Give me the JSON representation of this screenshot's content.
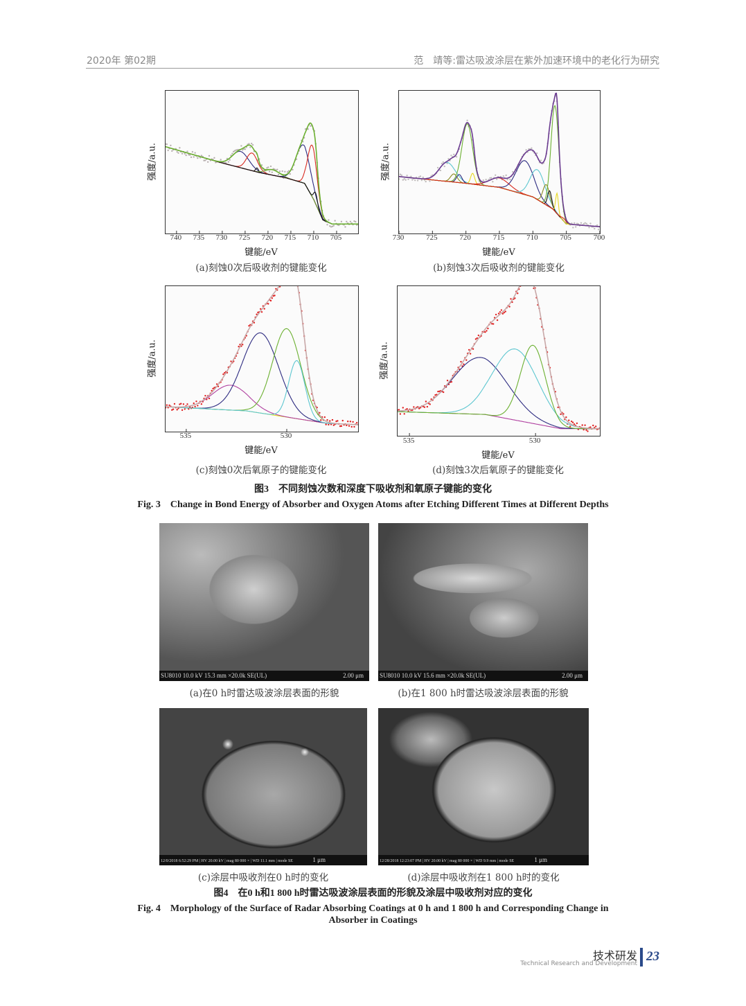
{
  "header": {
    "left": "2020年 第02期",
    "right": "范　靖等:雷达吸波涂层在紫外加速环境中的老化行为研究"
  },
  "chart_data": [
    {
      "type": "line",
      "id": "a",
      "xlabel": "键能/eV",
      "ylabel": "强度/a.u.",
      "caption": "(a)刻蚀0次后吸收剂的键能变化",
      "xlim": [
        742.4,
        700.3
      ],
      "ticks": [
        740,
        735,
        730,
        725,
        720,
        715,
        710,
        705
      ],
      "background": [
        [
          742.4,
          0.64
        ],
        [
          730,
          0.52
        ],
        [
          722,
          0.45
        ],
        [
          716,
          0.41
        ],
        [
          712,
          0.37
        ],
        [
          710,
          0.25
        ],
        [
          708,
          0.1
        ],
        [
          706,
          0.07
        ],
        [
          700.3,
          0.07
        ]
      ],
      "background_color": "#5cc6d0",
      "components": [
        [
          726,
          0.12,
          1.8,
          "#2c2a80"
        ],
        [
          723.5,
          0.13,
          1.2,
          "#d8281e"
        ],
        [
          722.4,
          0.03,
          0.3,
          "#111111"
        ],
        [
          719,
          0.04,
          1.5,
          "#7aa640"
        ],
        [
          712.3,
          0.28,
          1.6,
          "#2c2a80"
        ],
        [
          710.3,
          0.38,
          1.0,
          "#d8281e"
        ],
        [
          709.6,
          0.08,
          0.4,
          "#111111"
        ]
      ],
      "envelope_color": "#6bb030",
      "points_color": "#b8b0b0"
    },
    {
      "type": "line",
      "id": "b",
      "xlabel": "键能/eV",
      "ylabel": "强度/a.u.",
      "caption": "(b)刻蚀3次后吸收剂的键能变化",
      "xlim": [
        730,
        700
      ],
      "ticks": [
        730,
        725,
        720,
        715,
        710,
        705,
        700
      ],
      "background": [
        [
          730,
          0.42
        ],
        [
          720,
          0.37
        ],
        [
          715,
          0.34
        ],
        [
          710,
          0.27
        ],
        [
          707,
          0.18
        ],
        [
          705,
          0.07
        ],
        [
          700,
          0.05
        ]
      ],
      "background_color": "#f07a20",
      "components": [
        [
          722.8,
          0.14,
          1.2,
          "#5cc6d0"
        ],
        [
          721.8,
          0.06,
          0.5,
          "#8a8a20"
        ],
        [
          721,
          0.06,
          0.4,
          "#2c2a80"
        ],
        [
          719.8,
          0.44,
          0.8,
          "#6bb030"
        ],
        [
          719,
          0.08,
          0.3,
          "#e8d820"
        ],
        [
          715,
          0.07,
          1.5,
          "#d8281e"
        ],
        [
          711.2,
          0.25,
          1.3,
          "#2c2a80"
        ],
        [
          709.3,
          0.22,
          1.1,
          "#5cc6d0"
        ],
        [
          708,
          0.15,
          0.5,
          "#8a8a20"
        ],
        [
          707.5,
          0.12,
          0.3,
          "#111111"
        ],
        [
          706.7,
          0.78,
          0.6,
          "#6bb030"
        ],
        [
          706.4,
          0.15,
          0.2,
          "#e8d820"
        ],
        [
          705.3,
          0.02,
          0.4,
          "#d8281e"
        ]
      ],
      "envelope_color": "#6a3a90",
      "points_color": "#c0bcbc"
    },
    {
      "type": "line",
      "id": "c",
      "xlabel": "键能/eV",
      "ylabel": "强度/a.u.",
      "caption": "(c)刻蚀0次后氧原子的键能变化",
      "xlim": [
        536.03,
        526.45
      ],
      "ticks": [
        535,
        530
      ],
      "background": [
        [
          536.03,
          0.18
        ],
        [
          532,
          0.15
        ],
        [
          528,
          0.06
        ],
        [
          526.45,
          0.05
        ]
      ],
      "background_color": "#e0e020",
      "components": [
        [
          532.8,
          0.18,
          0.9,
          "#b040a0"
        ],
        [
          531.3,
          0.58,
          0.9,
          "#2c2a80"
        ],
        [
          530,
          0.64,
          0.7,
          "#6bb030"
        ],
        [
          529.5,
          0.42,
          0.4,
          "#5cc6d0"
        ]
      ],
      "envelope_color": "#c8a8a8",
      "points_color": "#e02020"
    },
    {
      "type": "line",
      "id": "d",
      "xlabel": "键能/eV",
      "ylabel": "强度/a.u.",
      "caption": "(d)刻蚀3次后氧原子的键能变化",
      "xlim": [
        535.47,
        527.45
      ],
      "ticks": [
        535,
        530
      ],
      "background": [
        [
          535.47,
          0.17
        ],
        [
          532,
          0.15
        ],
        [
          529,
          0.05
        ],
        [
          527.45,
          0.05
        ]
      ],
      "background_color": "#b040a0",
      "components": [
        [
          532.2,
          0.4,
          1.1,
          "#2c2a80"
        ],
        [
          530.8,
          0.5,
          0.9,
          "#5cc6d0"
        ],
        [
          530.1,
          0.55,
          0.5,
          "#6bb030"
        ]
      ],
      "envelope_color": "#c8a8a8",
      "points_color": "#e02020"
    }
  ],
  "fig3": {
    "cn": "图3　不同刻蚀次数和深度下吸收剂和氧原子键能的变化",
    "en": "Fig. 3　Change in Bond Energy of Absorber and Oxygen Atoms after Etching Different Times at Different Depths"
  },
  "sem": [
    {
      "info": "SU8010 10.0 kV 15.3 mm ×20.0k SE(UL)",
      "scale": "2.00 μm",
      "caption": "(a)在0 h时雷达吸波涂层表面的形貌"
    },
    {
      "info": "SU8010 10.0 kV 15.6 mm ×20.0k SE(UL)",
      "scale": "2.00 μm",
      "caption": "(b)在1 800 h时雷达吸波涂层表面的形貌"
    },
    {
      "info": "12/0/2018 6:52:29 PM | HV 20.00 kV | mag 80 000 × | WD 11.1 mm | mode SE",
      "scale": "1 μm",
      "caption": "(c)涂层中吸收剂在0 h时的变化"
    },
    {
      "info": "12/28/2018 12:23:07 PM | HV 20.00 kV | mag 80 000 × | WD 9.9 mm | mode SE",
      "scale": "1 μm",
      "caption": "(d)涂层中吸收剂在1 800 h时的变化"
    }
  ],
  "fig4": {
    "cn": "图4　在0 h和1 800 h时雷达吸波涂层表面的形貌及涂层中吸收剂对应的变化",
    "en1": "Fig. 4　Morphology of the Surface of Radar Absorbing Coatings at 0 h and 1 800 h and Corresponding Change in",
    "en2": "Absorber in Coatings"
  },
  "footer": {
    "section": "技术研发",
    "section_en": "Technical Research and Development",
    "page": "23"
  }
}
